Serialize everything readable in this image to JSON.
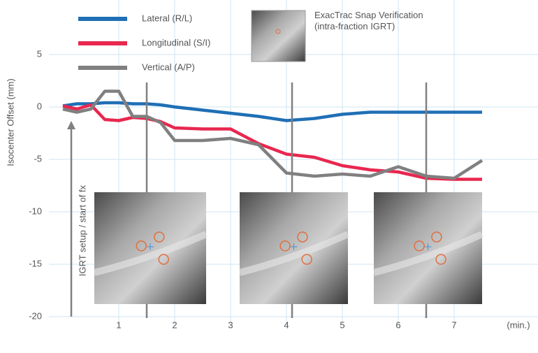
{
  "chart_data": {
    "type": "line",
    "y_label": "Isocenter Offset (mm)",
    "x_label": "(min.)",
    "x": [
      0,
      0.25,
      0.5,
      0.75,
      1,
      1.25,
      1.5,
      1.75,
      2,
      2.5,
      3,
      3.5,
      4,
      4.5,
      5,
      5.5,
      6,
      6.5,
      7,
      7.5
    ],
    "series": [
      {
        "name": "Lateral (R/L)",
        "color": "#1f6fb5",
        "values": [
          0.1,
          0.3,
          0.3,
          0.4,
          0.4,
          0.3,
          0.3,
          0.2,
          0,
          -0.3,
          -0.6,
          -0.9,
          -1.3,
          -1.1,
          -0.7,
          -0.5,
          -0.5,
          -0.5,
          -0.5,
          -0.5
        ]
      },
      {
        "name": "Longitudinal (S/I)",
        "color": "#e8284f",
        "values": [
          0.1,
          -0.2,
          0.2,
          -1.2,
          -1.3,
          -1,
          -1.1,
          -1.4,
          -2,
          -2.1,
          -2.1,
          -3.5,
          -4.5,
          -4.8,
          -5.6,
          -6,
          -6.2,
          -6.8,
          -6.9,
          -6.9
        ]
      },
      {
        "name": "Vertical (A/P)",
        "color": "#808080",
        "values": [
          -0.2,
          -0.5,
          -0.2,
          1.5,
          1.5,
          -0.9,
          -0.9,
          -1.5,
          -3.2,
          -3.2,
          -3,
          -3.6,
          -6.3,
          -6.6,
          -6.4,
          -6.6,
          -5.7,
          -6.6,
          -6.8,
          -5.1
        ]
      }
    ],
    "xlim": [
      -0.25,
      8.5
    ],
    "ylim": [
      -20.8,
      10.2
    ],
    "xticks": [
      1,
      2,
      3,
      4,
      5,
      6,
      7
    ],
    "yticks": [
      5,
      0,
      -5,
      -10,
      -15,
      -20
    ],
    "grid": true,
    "snapshot_x": [
      1.5,
      4.1,
      6.5
    ],
    "snapshot_label": "ExacTrac Snap Verification (intra-fraction IGRT)",
    "annotation": "IGRT setup / start of fx"
  }
}
